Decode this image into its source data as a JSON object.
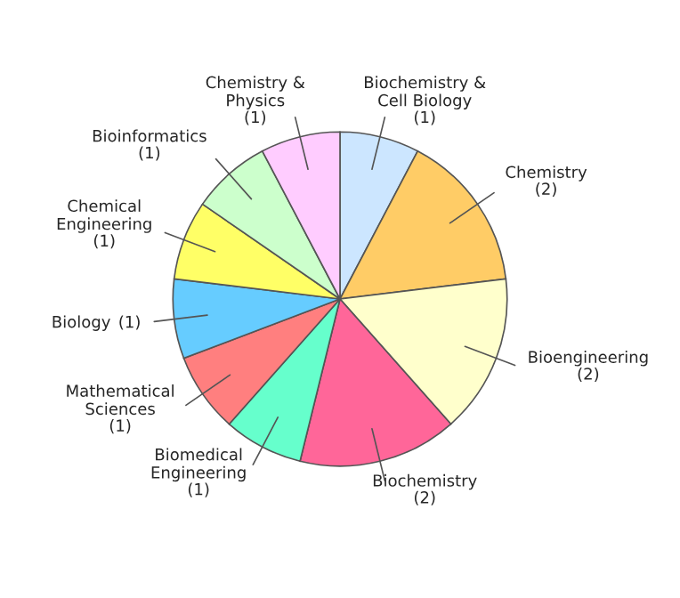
{
  "chart_data": {
    "type": "pie",
    "categories": [
      "Biochemistry &\nCell Biology",
      "Chemistry",
      "Bioengineering",
      "Biochemistry",
      "Biomedical\nEngineering",
      "Mathematical\nSciences",
      "Biology",
      "Chemical\nEngineering",
      "Bioinformatics",
      "Chemistry &\nPhysics"
    ],
    "values": [
      1,
      2,
      2,
      2,
      1,
      1,
      1,
      1,
      1,
      1
    ],
    "value_labels": [
      "(1)",
      "(2)",
      "(2)",
      "(2)",
      "(1)",
      "(1)",
      "(1)",
      "(1)",
      "(1)",
      "(1)"
    ],
    "colors": [
      "#cce6ff",
      "#ffcc66",
      "#ffffcc",
      "#ff6699",
      "#66ffcc",
      "#ff7f7f",
      "#66ccff",
      "#ffff66",
      "#ccffcc",
      "#ffccff"
    ]
  }
}
